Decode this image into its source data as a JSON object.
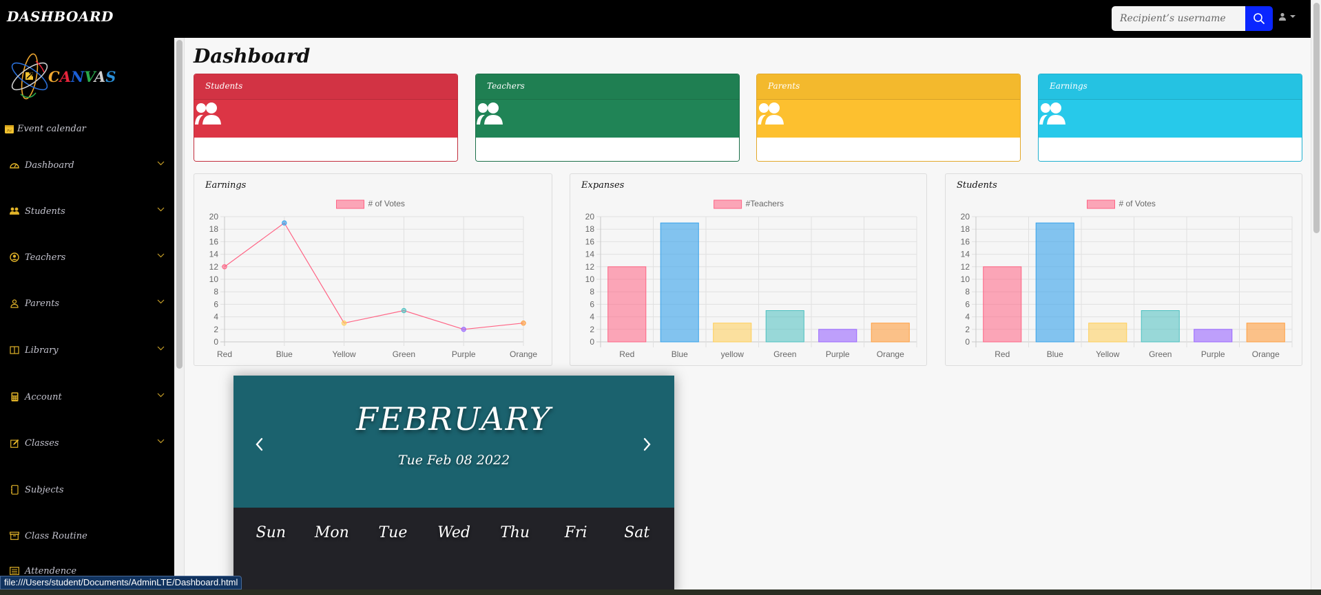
{
  "header": {
    "brand": "DASHBOARD",
    "search_placeholder": "Recipient’s username",
    "search_icon": "search-icon",
    "user_icon": "user-icon"
  },
  "sidebar": {
    "logo_text": [
      "C",
      "A",
      "N",
      "V",
      "A",
      "S"
    ],
    "logo_colors": [
      "#f0a830",
      "#e8243c",
      "#1b5fd6",
      "#29a84a",
      "#d0d0d0",
      "#2a8fd8"
    ],
    "event_calendar": "Event calendar",
    "items": [
      {
        "label": "Dashboard",
        "icon": "speedometer-icon",
        "chevron": true
      },
      {
        "label": "Students",
        "icon": "people-icon",
        "chevron": true
      },
      {
        "label": "Teachers",
        "icon": "person-circle-icon",
        "chevron": true
      },
      {
        "label": "Parents",
        "icon": "person-icon",
        "chevron": true
      },
      {
        "label": "Library",
        "icon": "book-icon",
        "chevron": true
      },
      {
        "label": "Account",
        "icon": "calculator-icon",
        "chevron": true
      },
      {
        "label": "Classes",
        "icon": "pencil-square-icon",
        "chevron": true
      },
      {
        "label": "Subjects",
        "icon": "journal-icon",
        "chevron": false
      },
      {
        "label": "Class Routine",
        "icon": "archive-icon",
        "chevron": false
      },
      {
        "label": "Attendence",
        "icon": "list-icon",
        "chevron": false
      }
    ]
  },
  "main": {
    "title": "Dashboard",
    "stat_cards": [
      {
        "label": "Students",
        "color": "#dc3545",
        "header_color": "#d23344",
        "border": "#c22c3b"
      },
      {
        "label": "Teachers",
        "color": "#208456",
        "header_color": "#1f7f52",
        "border": "#1a6e47"
      },
      {
        "label": "Parents",
        "color": "#fdc02f",
        "header_color": "#f3b92d",
        "border": "#e2a828"
      },
      {
        "label": "Earnings",
        "color": "#27c9ea",
        "header_color": "#25c2e2",
        "border": "#1eb0cf"
      }
    ]
  },
  "chart_data": [
    {
      "type": "line",
      "title": "Earnings",
      "legend": "# of Votes",
      "categories": [
        "Red",
        "Blue",
        "Yellow",
        "Green",
        "Purple",
        "Orange"
      ],
      "values": [
        12,
        19,
        3,
        5,
        2,
        3
      ],
      "point_colors": [
        "#ff6384",
        "#36a2eb",
        "#ffce56",
        "#4bc0c0",
        "#9966ff",
        "#ff9f40"
      ],
      "ylim": [
        0,
        20
      ],
      "yticks": [
        0,
        2,
        4,
        6,
        8,
        10,
        12,
        14,
        16,
        18,
        20
      ],
      "grid": true,
      "legend_position": "top"
    },
    {
      "type": "bar",
      "title": "Expanses",
      "legend": "#Teachers",
      "categories": [
        "Red",
        "Blue",
        "yellow",
        "Green",
        "Purple",
        "Orange"
      ],
      "values": [
        12,
        19,
        3,
        5,
        2,
        3
      ],
      "ylim": [
        0,
        20
      ],
      "yticks": [
        0,
        2,
        4,
        6,
        8,
        10,
        12,
        14,
        16,
        18,
        20
      ],
      "grid": true,
      "legend_position": "top"
    },
    {
      "type": "bar",
      "title": "Students",
      "legend": "# of Votes",
      "categories": [
        "Red",
        "Blue",
        "Yellow",
        "Green",
        "Purple",
        "Orange"
      ],
      "values": [
        12,
        19,
        3,
        5,
        2,
        3
      ],
      "ylim": [
        0,
        20
      ],
      "yticks": [
        0,
        2,
        4,
        6,
        8,
        10,
        12,
        14,
        16,
        18,
        20
      ],
      "grid": true,
      "legend_position": "top"
    }
  ],
  "series_colors": {
    "fill": [
      "rgba(255,99,132,0.55)",
      "rgba(54,162,235,0.6)",
      "rgba(255,206,86,0.55)",
      "rgba(75,192,192,0.55)",
      "rgba(153,102,255,0.6)",
      "rgba(255,159,64,0.6)"
    ],
    "stroke": [
      "#ff6384",
      "#36a2eb",
      "#ffce56",
      "#4bc0c0",
      "#9966ff",
      "#ff9f40"
    ]
  },
  "calendar": {
    "month": "FEBRUARY",
    "date": "Tue Feb 08 2022",
    "weekdays": [
      "Sun",
      "Mon",
      "Tue",
      "Wed",
      "Thu",
      "Fri",
      "Sat"
    ]
  },
  "status_bar": {
    "url": "file:///Users/student/Documents/AdminLTE/Dashboard.html"
  }
}
